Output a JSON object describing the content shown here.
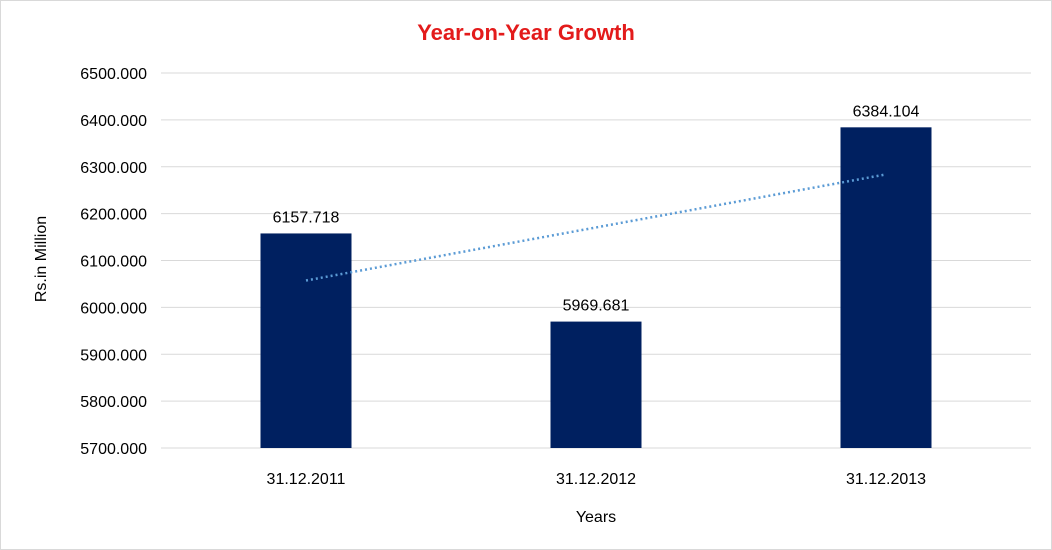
{
  "chart_data": {
    "type": "bar",
    "title": "Year-on-Year Growth",
    "xlabel": "Years",
    "ylabel": "Rs.in Million",
    "categories": [
      "31.12.2011",
      "31.12.2012",
      "31.12.2013"
    ],
    "values": [
      6157.718,
      5969.681,
      6384.104
    ],
    "data_labels": [
      "6157.718",
      "5969.681",
      "6384.104"
    ],
    "ylim": [
      5700,
      6500
    ],
    "y_ticks": [
      5700,
      5800,
      5900,
      6000,
      6100,
      6200,
      6300,
      6400,
      6500
    ],
    "y_tick_labels": [
      "5700.000",
      "5800.000",
      "5900.000",
      "6000.000",
      "6100.000",
      "6200.000",
      "6300.000",
      "6400.000",
      "6500.000"
    ],
    "trendline": {
      "type": "linear",
      "style": "dotted",
      "color": "#5b9bd5"
    },
    "grid": true,
    "legend": "none",
    "bar_color": "#002060",
    "title_color": "#e31b1b"
  }
}
